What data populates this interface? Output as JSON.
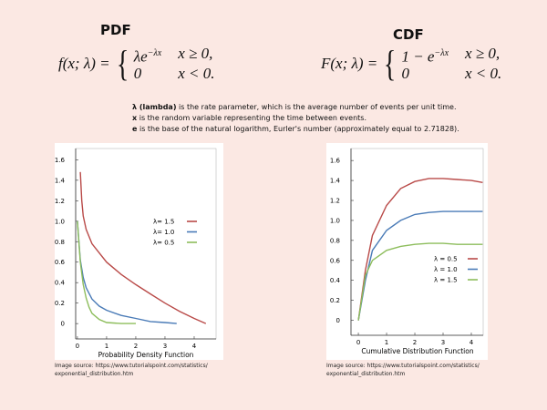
{
  "pdf": {
    "title": "PDF",
    "lhs": "f(x; λ) =",
    "cases": [
      {
        "expr": "λe",
        "sup": "−λx",
        "cond": "x ≥ 0,"
      },
      {
        "expr": "0",
        "cond": "x < 0."
      }
    ]
  },
  "cdf": {
    "title": "CDF",
    "lhs": "F(x; λ) =",
    "cases": [
      {
        "expr": "1 − e",
        "sup": "−λx",
        "cond": "x ≥ 0,"
      },
      {
        "expr": "0",
        "cond": "x < 0."
      }
    ]
  },
  "notes": [
    {
      "term": "λ (lambda)",
      "text": " is the rate parameter, which is the average number of events per unit time."
    },
    {
      "term": "x",
      "text": " is the random variable representing the time between events."
    },
    {
      "term": "e",
      "text": " is the base of the natural logarithm, Eurler's number (approximately equal to 2.71828)."
    }
  ],
  "sources": [
    {
      "line1": "Image source: https://www.tutorialspoint.com/statistics/",
      "line2": "exponential_distribution.htm"
    },
    {
      "line1": "Image source: https://www.tutorialspoint.com/statistics/",
      "line2": "exponential_distribution.htm"
    }
  ],
  "chart_data": [
    {
      "type": "line",
      "x_label": "Probability Density Function",
      "xlim": [
        -0.06,
        4.75
      ],
      "ylim": [
        -0.15,
        1.71
      ],
      "xticks": [
        0,
        1,
        2,
        3,
        4
      ],
      "yticks": [
        0,
        0.2,
        0.4,
        0.6,
        0.8,
        {
          "value": 1,
          "label": "1.0"
        },
        1.2,
        1.4,
        1.6
      ],
      "series": [
        {
          "name": "λ= 1.5",
          "color": "#b94a48",
          "x": [
            0.1,
            0.15,
            0.2,
            0.3,
            0.5,
            1,
            1.5,
            2,
            2.5,
            3,
            3.5,
            4,
            4.4
          ],
          "values": [
            1.48,
            1.2,
            1.05,
            0.92,
            0.78,
            0.6,
            0.48,
            0.38,
            0.29,
            0.2,
            0.12,
            0.05,
            0
          ]
        },
        {
          "name": "λ= 1.0",
          "color": "#4a7bb7",
          "x": [
            0,
            0.1,
            0.2,
            0.3,
            0.5,
            0.75,
            1,
            1.5,
            2,
            2.5,
            3,
            3.4
          ],
          "values": [
            1.0,
            0.62,
            0.45,
            0.35,
            0.24,
            0.17,
            0.13,
            0.08,
            0.05,
            0.02,
            0.01,
            0
          ]
        },
        {
          "name": "λ= 0.5",
          "color": "#8dbd5c",
          "x": [
            0,
            0.1,
            0.2,
            0.3,
            0.4,
            0.5,
            0.75,
            1,
            1.5,
            2
          ],
          "values": [
            1.0,
            0.6,
            0.38,
            0.25,
            0.16,
            0.1,
            0.04,
            0.01,
            0,
            0
          ]
        }
      ]
    },
    {
      "type": "line",
      "x_label": "Cumulative Distribution  Function",
      "xlim": [
        -0.26,
        4.42
      ],
      "ylim": [
        -0.15,
        1.72
      ],
      "xticks": [
        0,
        1,
        2,
        3,
        4
      ],
      "yticks": [
        0,
        0.2,
        0.4,
        0.6,
        0.8,
        {
          "value": 1,
          "label": "1.0"
        },
        1.2,
        1.4,
        1.6
      ],
      "series": [
        {
          "name": "λ = 0.5",
          "color": "#b94a48",
          "x": [
            0,
            0.25,
            0.5,
            1,
            1.5,
            2,
            2.5,
            3,
            3.5,
            4,
            4.4
          ],
          "values": [
            0,
            0.5,
            0.85,
            1.15,
            1.32,
            1.39,
            1.42,
            1.42,
            1.41,
            1.4,
            1.38
          ]
        },
        {
          "name": "λ = 1.0",
          "color": "#4a7bb7",
          "x": [
            0,
            0.25,
            0.5,
            1,
            1.5,
            2,
            2.5,
            3,
            3.5,
            4,
            4.4
          ],
          "values": [
            0,
            0.4,
            0.7,
            0.9,
            1.0,
            1.06,
            1.08,
            1.09,
            1.09,
            1.09,
            1.09
          ]
        },
        {
          "name": "λ = 1.5",
          "color": "#8dbd5c",
          "x": [
            0,
            0.25,
            0.5,
            1,
            1.5,
            2,
            2.5,
            3,
            3.5,
            4,
            4.4
          ],
          "values": [
            0,
            0.45,
            0.6,
            0.7,
            0.74,
            0.76,
            0.77,
            0.77,
            0.76,
            0.76,
            0.76
          ]
        }
      ]
    }
  ]
}
